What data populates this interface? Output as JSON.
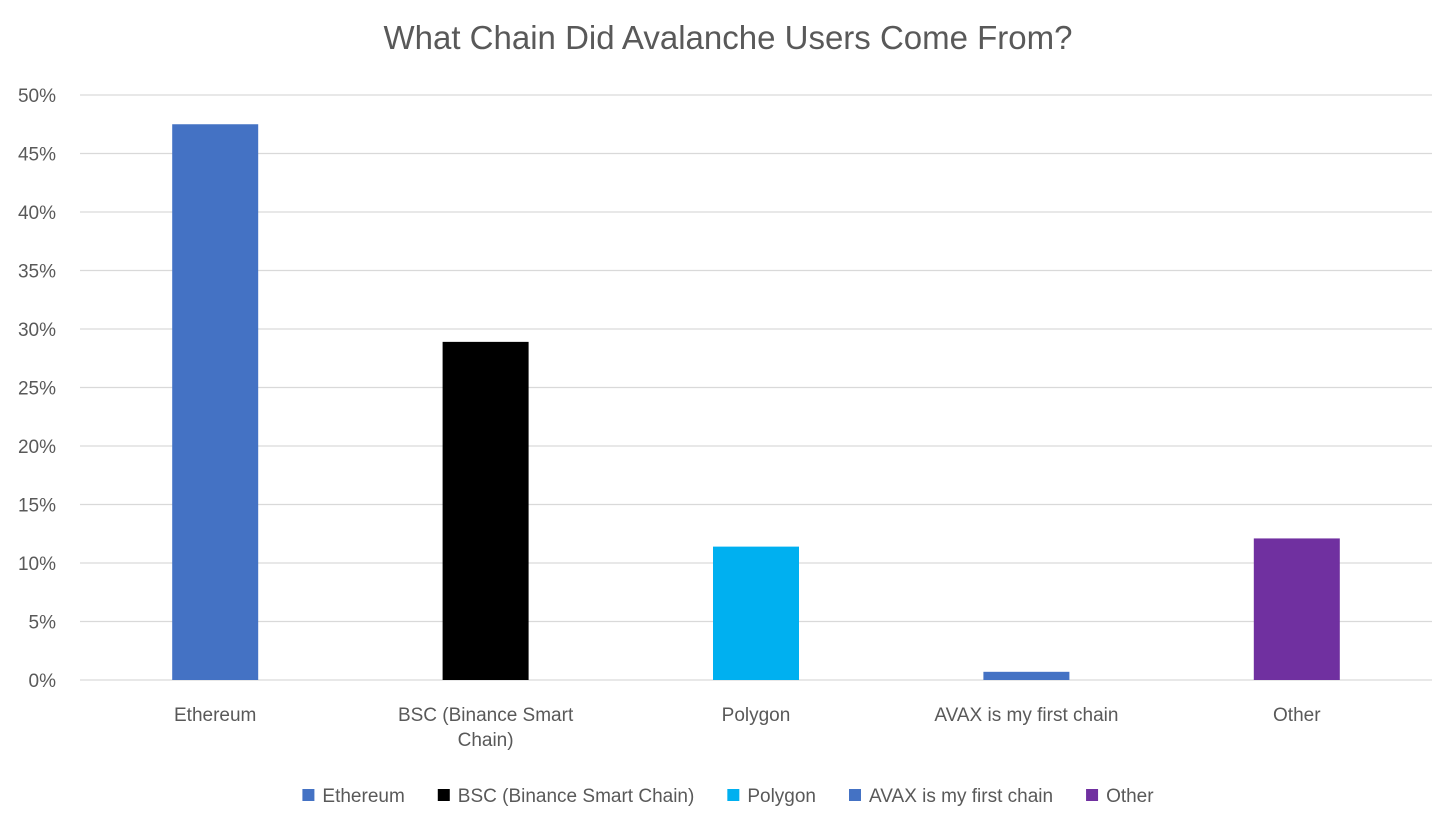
{
  "chart_data": {
    "type": "bar",
    "title": "What Chain Did Avalanche Users Come From?",
    "xlabel": "",
    "ylabel": "",
    "ylim": [
      0,
      50
    ],
    "ytick_step": 5,
    "ytick_suffix": "%",
    "grid": true,
    "legend": "bottom",
    "categories": [
      "Ethereum",
      "BSC (Binance Smart Chain)",
      "Polygon",
      "AVAX is my first chain",
      "Other"
    ],
    "category_label_lines": [
      [
        "Ethereum"
      ],
      [
        "BSC (Binance Smart",
        "Chain)"
      ],
      [
        "Polygon"
      ],
      [
        "AVAX is my first chain"
      ],
      [
        "Other"
      ]
    ],
    "values": [
      47.5,
      28.9,
      11.4,
      0.7,
      12.1
    ],
    "colors": [
      "#4472C4",
      "#000000",
      "#00B0F0",
      "#4472C4",
      "#7030A0"
    ]
  }
}
